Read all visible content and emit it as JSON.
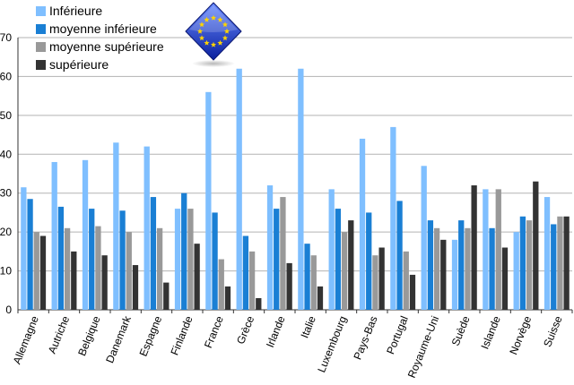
{
  "chart_data": {
    "type": "bar",
    "categories": [
      "Allemagne",
      "Autriche",
      "Belgique",
      "Danemark",
      "Espagne",
      "Finlande",
      "France",
      "Grèce",
      "Irlande",
      "Italie",
      "Luxembourg",
      "Pays-Bas",
      "Portugal",
      "Royaume-Uni",
      "Suède",
      "Islande",
      "Norvège",
      "Suisse"
    ],
    "series": [
      {
        "name": "Inférieure",
        "color": "#7fbfff",
        "values": [
          31.5,
          38,
          38.5,
          43,
          42,
          26,
          56,
          62,
          32,
          62,
          31,
          44,
          47,
          37,
          18,
          31,
          20,
          29
        ]
      },
      {
        "name": "moyenne inférieure",
        "color": "#1a7fd4",
        "values": [
          28.5,
          26.5,
          26,
          25.5,
          29,
          30,
          25,
          19,
          26,
          17,
          26,
          25,
          28,
          23,
          23,
          21,
          24,
          22
        ]
      },
      {
        "name": "moyenne supérieure",
        "color": "#999999",
        "values": [
          20,
          21,
          21.5,
          20,
          21,
          26,
          13,
          15,
          29,
          14,
          20,
          14,
          15,
          21,
          21,
          31,
          23,
          24
        ]
      },
      {
        "name": "supérieure",
        "color": "#333333",
        "values": [
          19,
          15,
          14,
          11.5,
          7,
          17,
          6,
          3,
          12,
          6,
          23,
          16,
          9,
          18,
          32,
          16,
          33,
          24
        ]
      }
    ],
    "ylim": [
      0,
      70
    ],
    "yticks": [
      0,
      10,
      20,
      30,
      40,
      50,
      60,
      70
    ],
    "grid": true,
    "legend_position": "top-left",
    "logo": "eu-flag-diamond-icon"
  }
}
